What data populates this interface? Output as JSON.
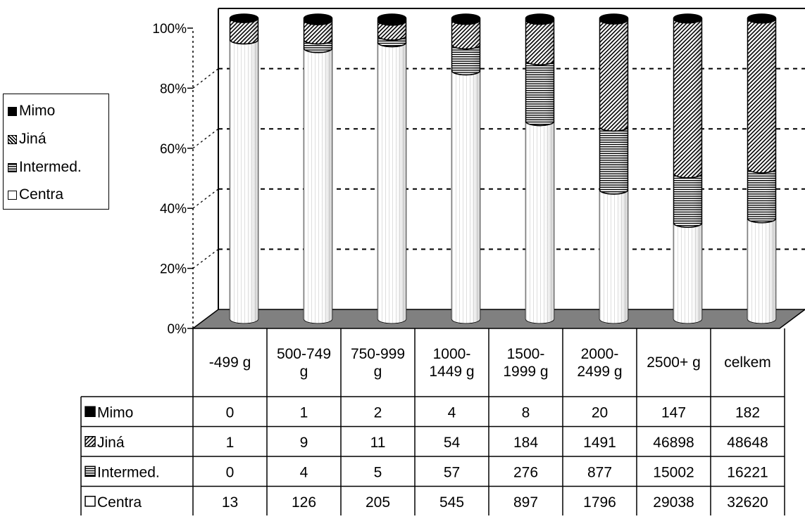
{
  "chart_data": {
    "type": "bar",
    "stacked": "percent",
    "three_d": true,
    "categories": [
      [
        "-499 g"
      ],
      [
        "500-749",
        "g"
      ],
      [
        "750-999",
        "g"
      ],
      [
        "1000-",
        "1449 g"
      ],
      [
        "1500-",
        "1999 g"
      ],
      [
        "2000-",
        "2499 g"
      ],
      [
        "2500+ g"
      ],
      [
        "celkem"
      ]
    ],
    "series": [
      {
        "name": "Centra",
        "values": [
          13,
          126,
          205,
          545,
          897,
          1796,
          29038,
          32620
        ],
        "pattern": "white"
      },
      {
        "name": "Intermed.",
        "values": [
          0,
          4,
          5,
          57,
          276,
          877,
          15002,
          16221
        ],
        "pattern": "horizontal-lines"
      },
      {
        "name": "Jiná",
        "values": [
          1,
          9,
          11,
          54,
          184,
          1491,
          46898,
          48648
        ],
        "pattern": "diagonal-hatch"
      },
      {
        "name": "Mimo",
        "values": [
          0,
          1,
          2,
          4,
          8,
          20,
          147,
          182
        ],
        "pattern": "solid-black"
      }
    ],
    "y_ticks": [
      "0%",
      "20%",
      "40%",
      "60%",
      "80%",
      "100%"
    ],
    "ylim": [
      0,
      100
    ],
    "grid": true,
    "legend_position": "left",
    "data_table": true
  },
  "legend": {
    "items": [
      {
        "label": "Mimo",
        "icon": "solid-black-square-icon"
      },
      {
        "label": "Jiná",
        "icon": "diagonal-hatch-square-icon"
      },
      {
        "label": "Intermed.",
        "icon": "horizontal-lines-square-icon"
      },
      {
        "label": "Centra",
        "icon": "white-square-icon"
      }
    ]
  },
  "table": {
    "row_order": [
      "Mimo",
      "Jiná",
      "Intermed.",
      "Centra"
    ]
  },
  "colors": {
    "floor": "#808080",
    "lines": "#000000",
    "background": "#ffffff"
  }
}
